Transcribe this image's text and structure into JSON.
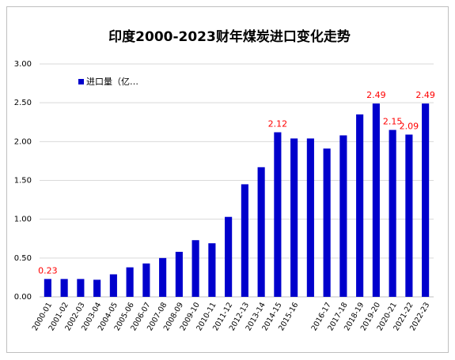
{
  "chart_data": {
    "type": "bar",
    "title": "印度2000-2023财年煤炭进口变化走势",
    "legend": "进口量（亿…",
    "categories": [
      "2000-01",
      "2001-02",
      "2002-03",
      "2003-04",
      "2004-05",
      "2005-06",
      "2006-07",
      "2007-08",
      "2008-09",
      "2009-10",
      "2010-11",
      "2011-12",
      "2012-13",
      "2013-14",
      "2014-15",
      "2015-16",
      null,
      "2016-17",
      "2017-18",
      "2018-19",
      "2019-20",
      "2020-21",
      "2021-22",
      "2022-23"
    ],
    "values": [
      0.23,
      0.23,
      0.23,
      0.22,
      0.29,
      0.38,
      0.43,
      0.5,
      0.58,
      0.73,
      0.69,
      1.03,
      1.45,
      1.67,
      2.12,
      2.04,
      2.04,
      1.91,
      2.08,
      2.35,
      2.49,
      2.15,
      2.09,
      2.49
    ],
    "value_labels": [
      "0.23",
      null,
      null,
      null,
      null,
      null,
      null,
      null,
      null,
      null,
      null,
      null,
      null,
      null,
      "2.12",
      null,
      null,
      null,
      null,
      null,
      "2.49",
      "2.15",
      "2.09",
      "2.49"
    ],
    "color": "#0000cc",
    "label_color": "#ff0000",
    "ylim": [
      0,
      3
    ],
    "yticks": [
      {
        "value": 0,
        "label": "0.00"
      },
      {
        "value": 0.5,
        "label": "0.50"
      },
      {
        "value": 1,
        "label": "1.00"
      },
      {
        "value": 1.5,
        "label": "1.50"
      },
      {
        "value": 2,
        "label": "2.00"
      },
      {
        "value": 2.5,
        "label": "2.50"
      },
      {
        "value": 3,
        "label": "3.00"
      }
    ],
    "grid": true
  }
}
